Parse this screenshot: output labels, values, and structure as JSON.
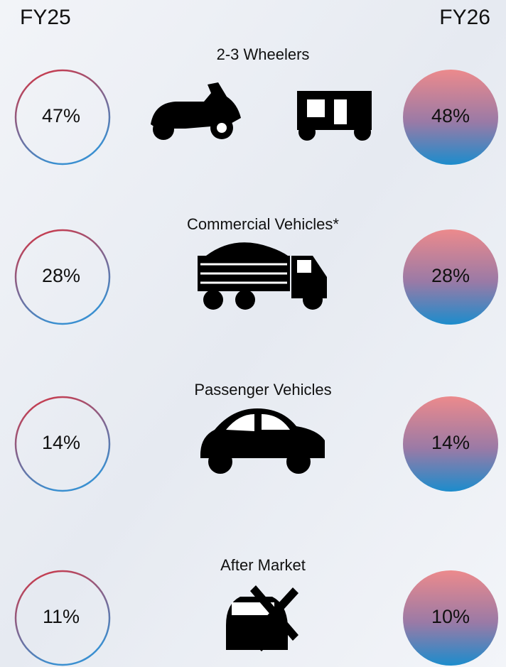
{
  "header": {
    "left": "FY25",
    "right": "FY26"
  },
  "rows": [
    {
      "label": "2-3 Wheelers",
      "fy25": "47%",
      "fy26": "48%"
    },
    {
      "label": "Commercial Vehicles*",
      "fy25": "28%",
      "fy26": "28%"
    },
    {
      "label": "Passenger Vehicles",
      "fy25": "14%",
      "fy26": "14%"
    },
    {
      "label": "After Market",
      "fy25": "11%",
      "fy26": "10%"
    }
  ]
}
